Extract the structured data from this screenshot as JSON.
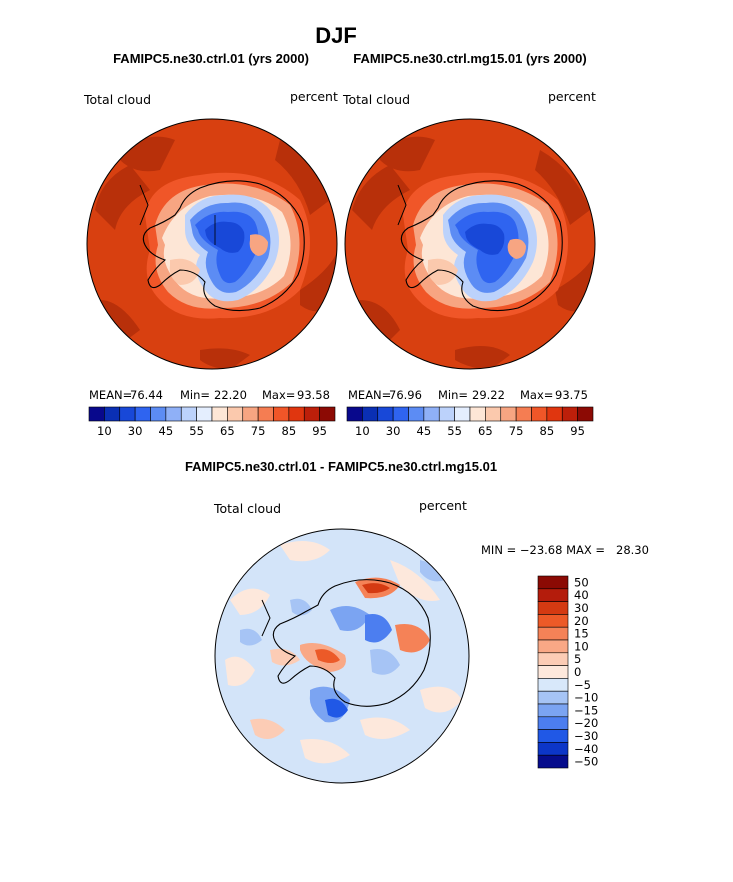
{
  "figure": {
    "title": "DJF",
    "panels": [
      {
        "case_title": "FAMIPC5.ne30.ctrl.01 (yrs 2000)",
        "variable": "Total cloud",
        "units": "percent",
        "stats": {
          "mean_label": "MEAN=",
          "mean": "76.44",
          "min_label": "Min=",
          "min": "22.20",
          "max_label": "Max=",
          "max": "93.58"
        },
        "colorbar_labels": [
          "10",
          "30",
          "45",
          "55",
          "65",
          "75",
          "85",
          "95"
        ]
      },
      {
        "case_title": "FAMIPC5.ne30.ctrl.mg15.01 (yrs 2000)",
        "variable": "Total cloud",
        "units": "percent",
        "stats": {
          "mean_label": "MEAN=",
          "mean": "76.96",
          "min_label": "Min=",
          "min": "29.22",
          "max_label": "Max=",
          "max": "93.75"
        },
        "colorbar_labels": [
          "10",
          "30",
          "45",
          "55",
          "65",
          "75",
          "85",
          "95"
        ]
      }
    ],
    "difference": {
      "case_title": "FAMIPC5.ne30.ctrl.01 - FAMIPC5.ne30.ctrl.mg15.01",
      "variable": "Total cloud",
      "units": "percent",
      "minmax_text": "MIN = −23.68 MAX =   28.30",
      "colorbar_labels": [
        "50",
        "40",
        "30",
        "20",
        "15",
        "10",
        "5",
        "0",
        "−5",
        "−10",
        "−15",
        "−20",
        "−30",
        "−40",
        "−50"
      ]
    }
  },
  "chart_data": [
    {
      "type": "heatmap",
      "projection": "south-polar stereographic",
      "title": "FAMIPC5.ne30.ctrl.01 (yrs 2000)",
      "field": "Total cloud",
      "units": "percent",
      "mean": 76.44,
      "min": 22.2,
      "max": 93.58,
      "levels": [
        10,
        30,
        45,
        55,
        65,
        75,
        85,
        95
      ]
    },
    {
      "type": "heatmap",
      "projection": "south-polar stereographic",
      "title": "FAMIPC5.ne30.ctrl.mg15.01 (yrs 2000)",
      "field": "Total cloud",
      "units": "percent",
      "mean": 76.96,
      "min": 29.22,
      "max": 93.75,
      "levels": [
        10,
        30,
        45,
        55,
        65,
        75,
        85,
        95
      ]
    },
    {
      "type": "heatmap",
      "projection": "south-polar stereographic",
      "title": "FAMIPC5.ne30.ctrl.01 - FAMIPC5.ne30.ctrl.mg15.01",
      "field": "Total cloud",
      "units": "percent",
      "min": -23.68,
      "max": 28.3,
      "levels": [
        -50,
        -40,
        -30,
        -20,
        -15,
        -10,
        -5,
        0,
        5,
        10,
        15,
        20,
        30,
        40,
        50
      ]
    }
  ],
  "colors": {
    "abs_scale": [
      "#08088c",
      "#0a2fb4",
      "#1848d8",
      "#2f64f0",
      "#5c8cf4",
      "#8fb0f7",
      "#bcd2fb",
      "#e4eefe",
      "#fde6d6",
      "#fbc9ad",
      "#f7a582",
      "#f57d52",
      "#f05628",
      "#e0360f",
      "#bd1f0a",
      "#8c0a04"
    ],
    "diff_scale": [
      "#8b0a04",
      "#b41c0c",
      "#d43a12",
      "#ec5a28",
      "#f58257",
      "#f9a886",
      "#fcccb5",
      "#fde8dc",
      "#d8e8fa",
      "#a6c4f5",
      "#7ba4f2",
      "#4c7ef0",
      "#2058e6",
      "#0c36c8",
      "#060c8c"
    ],
    "ocean_high": "#d84010",
    "ocean_dark": "#b8300a",
    "land_low": "#1e50dc",
    "diff_background": "#d3e4f9"
  }
}
